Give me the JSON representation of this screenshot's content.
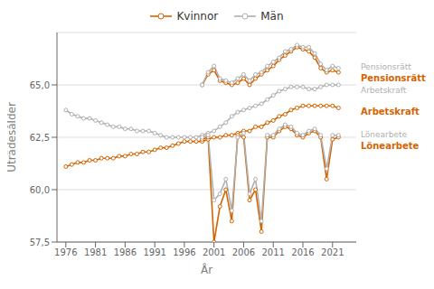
{
  "chart_data": {
    "type": "line",
    "title": "",
    "xlabel": "År",
    "ylabel": "Uträdesålder",
    "x": [
      1976,
      1977,
      1978,
      1979,
      1980,
      1981,
      1982,
      1983,
      1984,
      1985,
      1986,
      1987,
      1988,
      1989,
      1990,
      1991,
      1992,
      1993,
      1994,
      1995,
      1996,
      1997,
      1998,
      1999,
      2000,
      2001,
      2002,
      2003,
      2004,
      2005,
      2006,
      2007,
      2008,
      2009,
      2010,
      2011,
      2012,
      2013,
      2014,
      2015,
      2016,
      2017,
      2018,
      2019,
      2020,
      2021,
      2022
    ],
    "xlim": [
      1974.5,
      2025
    ],
    "xticks": [
      1976,
      1981,
      1986,
      1991,
      1996,
      2001,
      2006,
      2011,
      2016,
      2021
    ],
    "ylim": [
      57.5,
      67.5
    ],
    "yticks": [
      {
        "value": 57.5,
        "label": "57,5"
      },
      {
        "value": 60.0,
        "label": "60,0"
      },
      {
        "value": 62.5,
        "label": "62,5"
      },
      {
        "value": 65.0,
        "label": "65,0"
      }
    ],
    "grid": true,
    "legend": "top",
    "marker": "o",
    "series": [
      {
        "name": "Kvinnor",
        "color": "#d46400",
        "values": [
          61.1,
          61.2,
          61.3,
          61.3,
          61.4,
          61.4,
          61.5,
          61.5,
          61.5,
          61.6,
          61.6,
          61.7,
          61.7,
          61.8,
          61.8,
          61.9,
          62.0,
          62.0,
          62.1,
          62.2,
          62.3,
          62.3,
          62.3,
          62.3,
          62.4,
          62.5,
          62.5,
          62.6,
          62.6,
          62.7,
          62.8,
          62.8,
          63.0,
          63.0,
          63.2,
          63.3,
          63.5,
          63.6,
          63.8,
          63.9,
          64.0,
          64.0,
          64.0,
          64.0,
          64.0,
          64.0,
          63.9
        ]
      },
      {
        "name": "Män",
        "color": "#b0b0b0",
        "values": [
          63.8,
          63.6,
          63.5,
          63.4,
          63.4,
          63.3,
          63.2,
          63.1,
          63.0,
          63.0,
          62.9,
          62.9,
          62.8,
          62.8,
          62.8,
          62.7,
          62.6,
          62.5,
          62.5,
          62.5,
          62.5,
          62.5,
          62.5,
          62.6,
          62.7,
          62.8,
          63.0,
          63.2,
          63.5,
          63.7,
          63.8,
          63.9,
          64.0,
          64.1,
          64.3,
          64.5,
          64.7,
          64.8,
          64.9,
          64.9,
          64.9,
          64.8,
          64.8,
          64.9,
          65.0,
          65.0,
          65.0
        ]
      },
      {
        "name": "Kvinnor",
        "color": "#d46400",
        "values": [
          null,
          null,
          null,
          null,
          null,
          null,
          null,
          null,
          null,
          null,
          null,
          null,
          null,
          null,
          null,
          null,
          null,
          null,
          null,
          null,
          null,
          null,
          null,
          65.0,
          65.5,
          65.7,
          65.2,
          65.1,
          65.0,
          65.1,
          65.3,
          65.0,
          65.3,
          65.5,
          65.7,
          65.9,
          66.2,
          66.4,
          66.6,
          66.8,
          66.7,
          66.6,
          66.3,
          65.8,
          65.6,
          65.7,
          65.6
        ]
      },
      {
        "name": "Män",
        "color": "#b0b0b0",
        "values": [
          null,
          null,
          null,
          null,
          null,
          null,
          null,
          null,
          null,
          null,
          null,
          null,
          null,
          null,
          null,
          null,
          null,
          null,
          null,
          null,
          null,
          null,
          null,
          65.0,
          65.6,
          65.9,
          65.3,
          65.2,
          65.1,
          65.3,
          65.5,
          65.2,
          65.5,
          65.6,
          65.9,
          66.1,
          66.3,
          66.6,
          66.7,
          66.9,
          66.8,
          66.8,
          66.5,
          66.0,
          65.7,
          65.9,
          65.8
        ]
      },
      {
        "name": "Kvinnor",
        "color": "#d46400",
        "values": [
          null,
          null,
          null,
          null,
          null,
          null,
          null,
          null,
          null,
          null,
          null,
          null,
          null,
          null,
          null,
          null,
          null,
          null,
          null,
          null,
          null,
          null,
          null,
          62.4,
          62.5,
          57.5,
          59.2,
          60.0,
          58.5,
          62.6,
          62.5,
          59.5,
          60.0,
          58.0,
          62.5,
          62.5,
          62.8,
          63.0,
          62.9,
          62.6,
          62.5,
          62.7,
          62.8,
          62.5,
          60.5,
          62.4,
          62.5
        ]
      },
      {
        "name": "Män",
        "color": "#b0b0b0",
        "values": [
          null,
          null,
          null,
          null,
          null,
          null,
          null,
          null,
          null,
          null,
          null,
          null,
          null,
          null,
          null,
          null,
          null,
          null,
          null,
          null,
          null,
          null,
          null,
          62.5,
          62.6,
          59.5,
          59.8,
          60.5,
          59.0,
          62.5,
          62.7,
          59.8,
          60.5,
          58.5,
          62.6,
          62.6,
          62.9,
          63.1,
          63.0,
          62.7,
          62.6,
          62.8,
          62.9,
          62.6,
          61.0,
          62.6,
          62.6
        ]
      }
    ],
    "annotations": [
      {
        "text": "Pensionsrätt",
        "color": "#b0b0b0",
        "y": 65.75
      },
      {
        "text": "Pensionsrätt",
        "color": "#d46400",
        "y": 65.45
      },
      {
        "text": "Arbetskraft",
        "color": "#b0b0b0",
        "y": 64.85
      },
      {
        "text": "Arbetskraft",
        "color": "#d46400",
        "y": 63.75
      },
      {
        "text": "Lönearbete",
        "color": "#b0b0b0",
        "y": 62.5
      },
      {
        "text": "Lönearbete",
        "color": "#d46400",
        "y": 62.2
      }
    ]
  }
}
